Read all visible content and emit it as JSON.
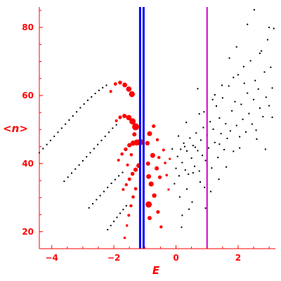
{
  "colors": {
    "axis": "#ff0000",
    "labels": "#ff0000",
    "markers_red": "#ff0000",
    "markers_black": "#000000",
    "vline_blue": "#0000ff",
    "vline_magenta": "#cc00cc",
    "background": "#ffffff"
  },
  "chart_data": {
    "type": "scatter",
    "title": "",
    "xlabel": "E",
    "ylabel": "<n>",
    "xlim": [
      -4.4,
      3.2
    ],
    "ylim": [
      15,
      86
    ],
    "x_ticks": [
      -4,
      -2,
      0,
      2
    ],
    "y_ticks": [
      20,
      40,
      60,
      80
    ],
    "grid": false,
    "legend": "none",
    "vertical_lines": [
      {
        "x": -1.1,
        "color": "#0000ff",
        "style": "double thick"
      },
      {
        "x": 1.0,
        "color": "#cc00cc",
        "style": "thin"
      }
    ],
    "series": [
      {
        "color": "#000000",
        "marker": "small dots",
        "note": "four curved diagonal branches on the left",
        "points": [
          [
            -4.4,
            43.2
          ],
          [
            -4.28,
            44.4
          ],
          [
            -4.16,
            45.6
          ],
          [
            -4.04,
            46.8
          ],
          [
            -3.92,
            48.0
          ],
          [
            -3.8,
            49.2
          ],
          [
            -3.68,
            50.4
          ],
          [
            -3.56,
            51.6
          ],
          [
            -3.44,
            52.8
          ],
          [
            -3.32,
            54.0
          ],
          [
            -3.2,
            55.2
          ],
          [
            -3.08,
            56.4
          ],
          [
            -2.96,
            57.5
          ],
          [
            -2.84,
            58.6
          ],
          [
            -2.72,
            59.6
          ],
          [
            -2.6,
            60.6
          ],
          [
            -2.48,
            61.5
          ],
          [
            -2.36,
            62.3
          ],
          [
            -2.24,
            63.0
          ],
          [
            -3.6,
            34.8
          ],
          [
            -3.48,
            36.0
          ],
          [
            -3.36,
            37.2
          ],
          [
            -3.24,
            38.4
          ],
          [
            -3.12,
            39.6
          ],
          [
            -3.0,
            40.8
          ],
          [
            -2.88,
            42.0
          ],
          [
            -2.76,
            43.2
          ],
          [
            -2.64,
            44.4
          ],
          [
            -2.52,
            45.6
          ],
          [
            -2.4,
            46.8
          ],
          [
            -2.28,
            48.0
          ],
          [
            -2.16,
            49.2
          ],
          [
            -2.04,
            50.4
          ],
          [
            -1.92,
            51.4
          ],
          [
            -2.8,
            27.0
          ],
          [
            -2.68,
            28.2
          ],
          [
            -2.56,
            29.4
          ],
          [
            -2.44,
            30.6
          ],
          [
            -2.32,
            31.8
          ],
          [
            -2.2,
            33.0
          ],
          [
            -2.08,
            34.2
          ],
          [
            -1.96,
            35.3
          ],
          [
            -1.84,
            36.4
          ],
          [
            -1.72,
            37.4
          ],
          [
            -2.2,
            20.6
          ],
          [
            -2.1,
            21.8
          ],
          [
            -2.0,
            23.0
          ],
          [
            -1.9,
            24.2
          ],
          [
            -1.8,
            25.4
          ],
          [
            -1.7,
            26.5
          ],
          [
            -1.6,
            27.6
          ]
        ]
      },
      {
        "color": "#ff0000",
        "marker": "filled circles",
        "note": "dense arcs curving toward E = -1 with growing marker sizes",
        "points": [
          [
            -2.1,
            61.2,
            2
          ],
          [
            -1.95,
            63.4,
            2.4
          ],
          [
            -1.8,
            63.8,
            2.8
          ],
          [
            -1.65,
            63.1,
            3.4
          ],
          [
            -1.52,
            61.9,
            3.8
          ],
          [
            -1.42,
            60.4,
            4.2
          ],
          [
            -1.92,
            52.6,
            2
          ],
          [
            -1.8,
            53.6,
            2.6
          ],
          [
            -1.66,
            54.0,
            3.1
          ],
          [
            -1.52,
            53.5,
            3.8
          ],
          [
            -1.4,
            52.4,
            4.5
          ],
          [
            -1.3,
            50.8,
            5
          ],
          [
            -1.85,
            41.0,
            2
          ],
          [
            -1.74,
            42.8,
            2.3
          ],
          [
            -1.62,
            44.2,
            2.7
          ],
          [
            -1.5,
            45.4,
            3.1
          ],
          [
            -1.38,
            46.0,
            3.7
          ],
          [
            -1.26,
            46.2,
            4.3
          ],
          [
            -1.15,
            46.3,
            4.5
          ],
          [
            -1.7,
            32.4,
            2
          ],
          [
            -1.6,
            33.8,
            2.2
          ],
          [
            -1.5,
            35.4,
            2.5
          ],
          [
            -1.4,
            37.0,
            2.8
          ],
          [
            -1.3,
            38.2,
            3.1
          ],
          [
            -1.2,
            39.4,
            3.4
          ],
          [
            -1.65,
            18.2,
            1.8
          ],
          [
            -1.58,
            21.8,
            1.8
          ],
          [
            -1.52,
            24.8,
            2
          ],
          [
            -1.45,
            27.6,
            2.2
          ],
          [
            -1.38,
            30.2,
            2.3
          ],
          [
            -1.3,
            32.6,
            2.4
          ],
          [
            -0.9,
            40.0,
            3
          ],
          [
            -0.75,
            42.4,
            3.5
          ],
          [
            -0.62,
            38.6,
            3
          ],
          [
            -0.52,
            36.0,
            2.6
          ],
          [
            -0.8,
            34.0,
            3.6
          ],
          [
            -0.88,
            28.0,
            4.5
          ],
          [
            -0.7,
            30.6,
            3.2
          ],
          [
            -0.58,
            25.8,
            2.6
          ],
          [
            -0.48,
            21.4,
            2.2
          ],
          [
            -0.85,
            24.0,
            3
          ],
          [
            -0.92,
            46.0,
            3.2
          ],
          [
            -0.85,
            48.8,
            3.5
          ],
          [
            -0.72,
            51.0,
            2.6
          ],
          [
            -0.6,
            47.0,
            2.2
          ],
          [
            -0.4,
            44.0,
            2
          ],
          [
            -0.35,
            40.2,
            1.8
          ],
          [
            -0.3,
            36.6,
            1.8
          ],
          [
            -0.24,
            32.4,
            1.6
          ],
          [
            -0.2,
            41.4,
            1.6
          ],
          [
            -0.55,
            41.8,
            2.2
          ],
          [
            -0.88,
            36.2,
            3.4
          ],
          [
            -1.56,
            39.6,
            2.1
          ],
          [
            -1.44,
            42.6,
            2.3
          ],
          [
            -1.34,
            48.6,
            3
          ]
        ]
      },
      {
        "color": "#000000",
        "marker": "small dots",
        "note": "broad cloud on the right",
        "points": [
          [
            0.0,
            38.6
          ],
          [
            0.05,
            42.1
          ],
          [
            0.1,
            36.4
          ],
          [
            0.15,
            44.2
          ],
          [
            0.2,
            40.3
          ],
          [
            0.25,
            46.0
          ],
          [
            0.3,
            38.1
          ],
          [
            0.35,
            43.7
          ],
          [
            0.4,
            36.9
          ],
          [
            0.45,
            47.5
          ],
          [
            0.5,
            41.6
          ],
          [
            0.55,
            45.3
          ],
          [
            0.6,
            39.2
          ],
          [
            0.65,
            49.0
          ],
          [
            0.7,
            43.8
          ],
          [
            0.75,
            37.8
          ],
          [
            0.8,
            46.9
          ],
          [
            0.85,
            42.4
          ],
          [
            0.9,
            55.2
          ],
          [
            0.95,
            40.9
          ],
          [
            1.0,
            48.4
          ],
          [
            1.05,
            44.6
          ],
          [
            1.1,
            52.3
          ],
          [
            1.15,
            38.7
          ],
          [
            1.2,
            50.1
          ],
          [
            1.25,
            46.2
          ],
          [
            1.3,
            56.9
          ],
          [
            1.35,
            41.8
          ],
          [
            1.4,
            53.4
          ],
          [
            1.45,
            48.8
          ],
          [
            1.5,
            59.3
          ],
          [
            1.55,
            44.1
          ],
          [
            1.6,
            51.7
          ],
          [
            1.65,
            47.4
          ],
          [
            1.7,
            62.8
          ],
          [
            1.75,
            49.6
          ],
          [
            1.8,
            55.5
          ],
          [
            1.85,
            43.6
          ],
          [
            1.9,
            58.2
          ],
          [
            1.95,
            51.2
          ],
          [
            2.0,
            66.1
          ],
          [
            2.05,
            47.9
          ],
          [
            2.1,
            57.4
          ],
          [
            2.15,
            53.0
          ],
          [
            2.2,
            63.6
          ],
          [
            2.25,
            49.3
          ],
          [
            2.3,
            60.7
          ],
          [
            2.35,
            54.7
          ],
          [
            2.4,
            70.2
          ],
          [
            2.45,
            51.6
          ],
          [
            2.5,
            58.8
          ],
          [
            2.55,
            64.4
          ],
          [
            2.6,
            47.2
          ],
          [
            2.65,
            61.9
          ],
          [
            2.7,
            56.3
          ],
          [
            2.75,
            73.1
          ],
          [
            2.8,
            53.8
          ],
          [
            2.85,
            66.9
          ],
          [
            2.9,
            59.5
          ],
          [
            2.95,
            76.4
          ],
          [
            3.0,
            57.0
          ],
          [
            3.05,
            68.3
          ],
          [
            3.1,
            62.2
          ],
          [
            3.15,
            79.7
          ],
          [
            0.12,
            30.2
          ],
          [
            0.35,
            32.5
          ],
          [
            0.52,
            28.7
          ],
          [
            0.78,
            34.6
          ],
          [
            0.95,
            26.9
          ],
          [
            1.12,
            31.8
          ],
          [
            1.38,
            35.4
          ],
          [
            0.2,
            24.8
          ],
          [
            0.42,
            26.6
          ],
          [
            0.18,
            21.3
          ],
          [
            0.62,
            44.8
          ],
          [
            0.88,
            50.6
          ],
          [
            1.18,
            58.8
          ],
          [
            1.48,
            63.0
          ],
          [
            1.72,
            71.0
          ],
          [
            2.18,
            68.5
          ],
          [
            2.52,
            85.2
          ],
          [
            2.7,
            72.4
          ],
          [
            3.0,
            80.0
          ],
          [
            2.3,
            80.9
          ],
          [
            1.95,
            74.3
          ],
          [
            1.25,
            60.2
          ],
          [
            0.7,
            62.0
          ],
          [
            0.75,
            54.6
          ],
          [
            0.33,
            52.1
          ],
          [
            0.08,
            48.1
          ],
          [
            -0.12,
            44.3
          ],
          [
            -0.05,
            34.1
          ],
          [
            0.28,
            45.0
          ],
          [
            1.62,
            39.0
          ],
          [
            2.05,
            44.6
          ],
          [
            2.58,
            49.8
          ],
          [
            2.88,
            44.2
          ],
          [
            3.1,
            53.6
          ],
          [
            1.85,
            65.3
          ],
          [
            1.4,
            45.7
          ],
          [
            0.55,
            37.3
          ],
          [
            0.92,
            33.0
          ]
        ]
      }
    ]
  }
}
